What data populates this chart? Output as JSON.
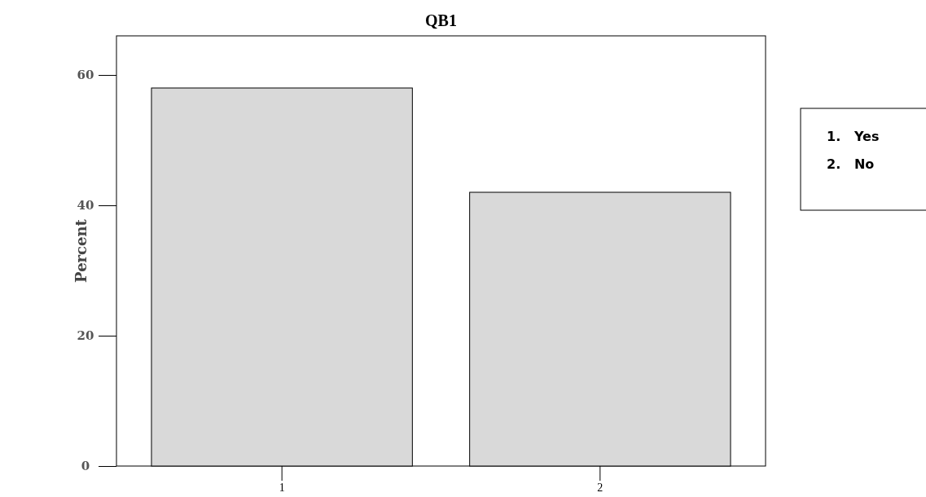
{
  "chart_data": {
    "type": "bar",
    "title": "QB1",
    "ylabel": "Percent",
    "categories": [
      "1",
      "2"
    ],
    "values": [
      58,
      42
    ],
    "color": "#d9d9d9",
    "ylim": [
      0,
      66
    ],
    "yticks": [
      0,
      20,
      40,
      60
    ],
    "grid": false,
    "annotations": [
      "1.   Yes",
      "2.   No"
    ]
  }
}
